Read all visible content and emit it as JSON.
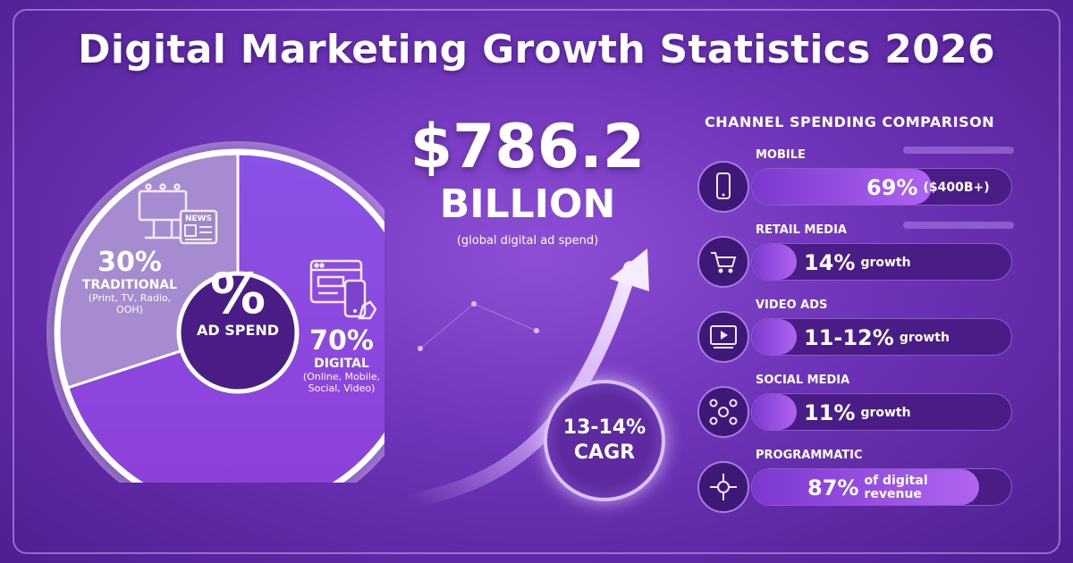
{
  "title": "Digital Marketing Growth Statistics 2026",
  "colors": {
    "background": "#6d33b8",
    "digital_slice": "#8a4de0",
    "traditional_slice": "#a78bd0",
    "bar_fill": "#b064f0",
    "bar_track": "#4a1d86"
  },
  "chart_data": [
    {
      "type": "pie",
      "title": "",
      "center_symbol": "%",
      "center_label": "AD SPEND",
      "slices": [
        {
          "key": "digital",
          "percent_label": "70%",
          "value": 70,
          "category": "DIGITAL",
          "detail": [
            "(Online, Mobile,",
            "Social, Video)"
          ],
          "color": "#8a4de0"
        },
        {
          "key": "traditional",
          "percent_label": "30%",
          "value": 30,
          "category": "TRADITIONAL",
          "detail": [
            "(Print, TV, Radio,",
            "OOH)"
          ],
          "color": "#a78bd0"
        }
      ],
      "icons": [
        "billboard-icon",
        "newspaper-icon",
        "web-browser-icon",
        "smartphone-icon"
      ]
    },
    {
      "type": "bar",
      "title": "CHANNEL SPENDING COMPARISON",
      "orientation": "horizontal",
      "bars": [
        {
          "key": "mobile",
          "category": "MOBILE",
          "value_label": "69%",
          "note": "($400B+)",
          "fill_percent": 69,
          "icon": "smartphone-icon"
        },
        {
          "key": "retail",
          "category": "RETAIL MEDIA",
          "value_label": "14%",
          "note": "growth",
          "fill_percent": 14,
          "icon": "shopping-cart-icon"
        },
        {
          "key": "video",
          "category": "VIDEO ADS",
          "value_label": "11-12%",
          "note": "growth",
          "fill_percent": 11.5,
          "icon": "video-play-icon"
        },
        {
          "key": "social",
          "category": "SOCIAL MEDIA",
          "value_label": "11%",
          "note": "growth",
          "fill_percent": 11,
          "icon": "social-network-icon"
        },
        {
          "key": "programmatic",
          "category": "PROGRAMMATIC",
          "value_label": "87%",
          "note": "of digital revenue",
          "note_lines": [
            "of digital",
            "revenue"
          ],
          "fill_percent": 87,
          "icon": "network-hub-icon"
        }
      ]
    }
  ],
  "headline": {
    "value": "$786.2",
    "unit": "BILLION",
    "description": "(global digital ad spend)"
  },
  "cagr": {
    "line1": "13-14%",
    "line2": "CAGR"
  }
}
